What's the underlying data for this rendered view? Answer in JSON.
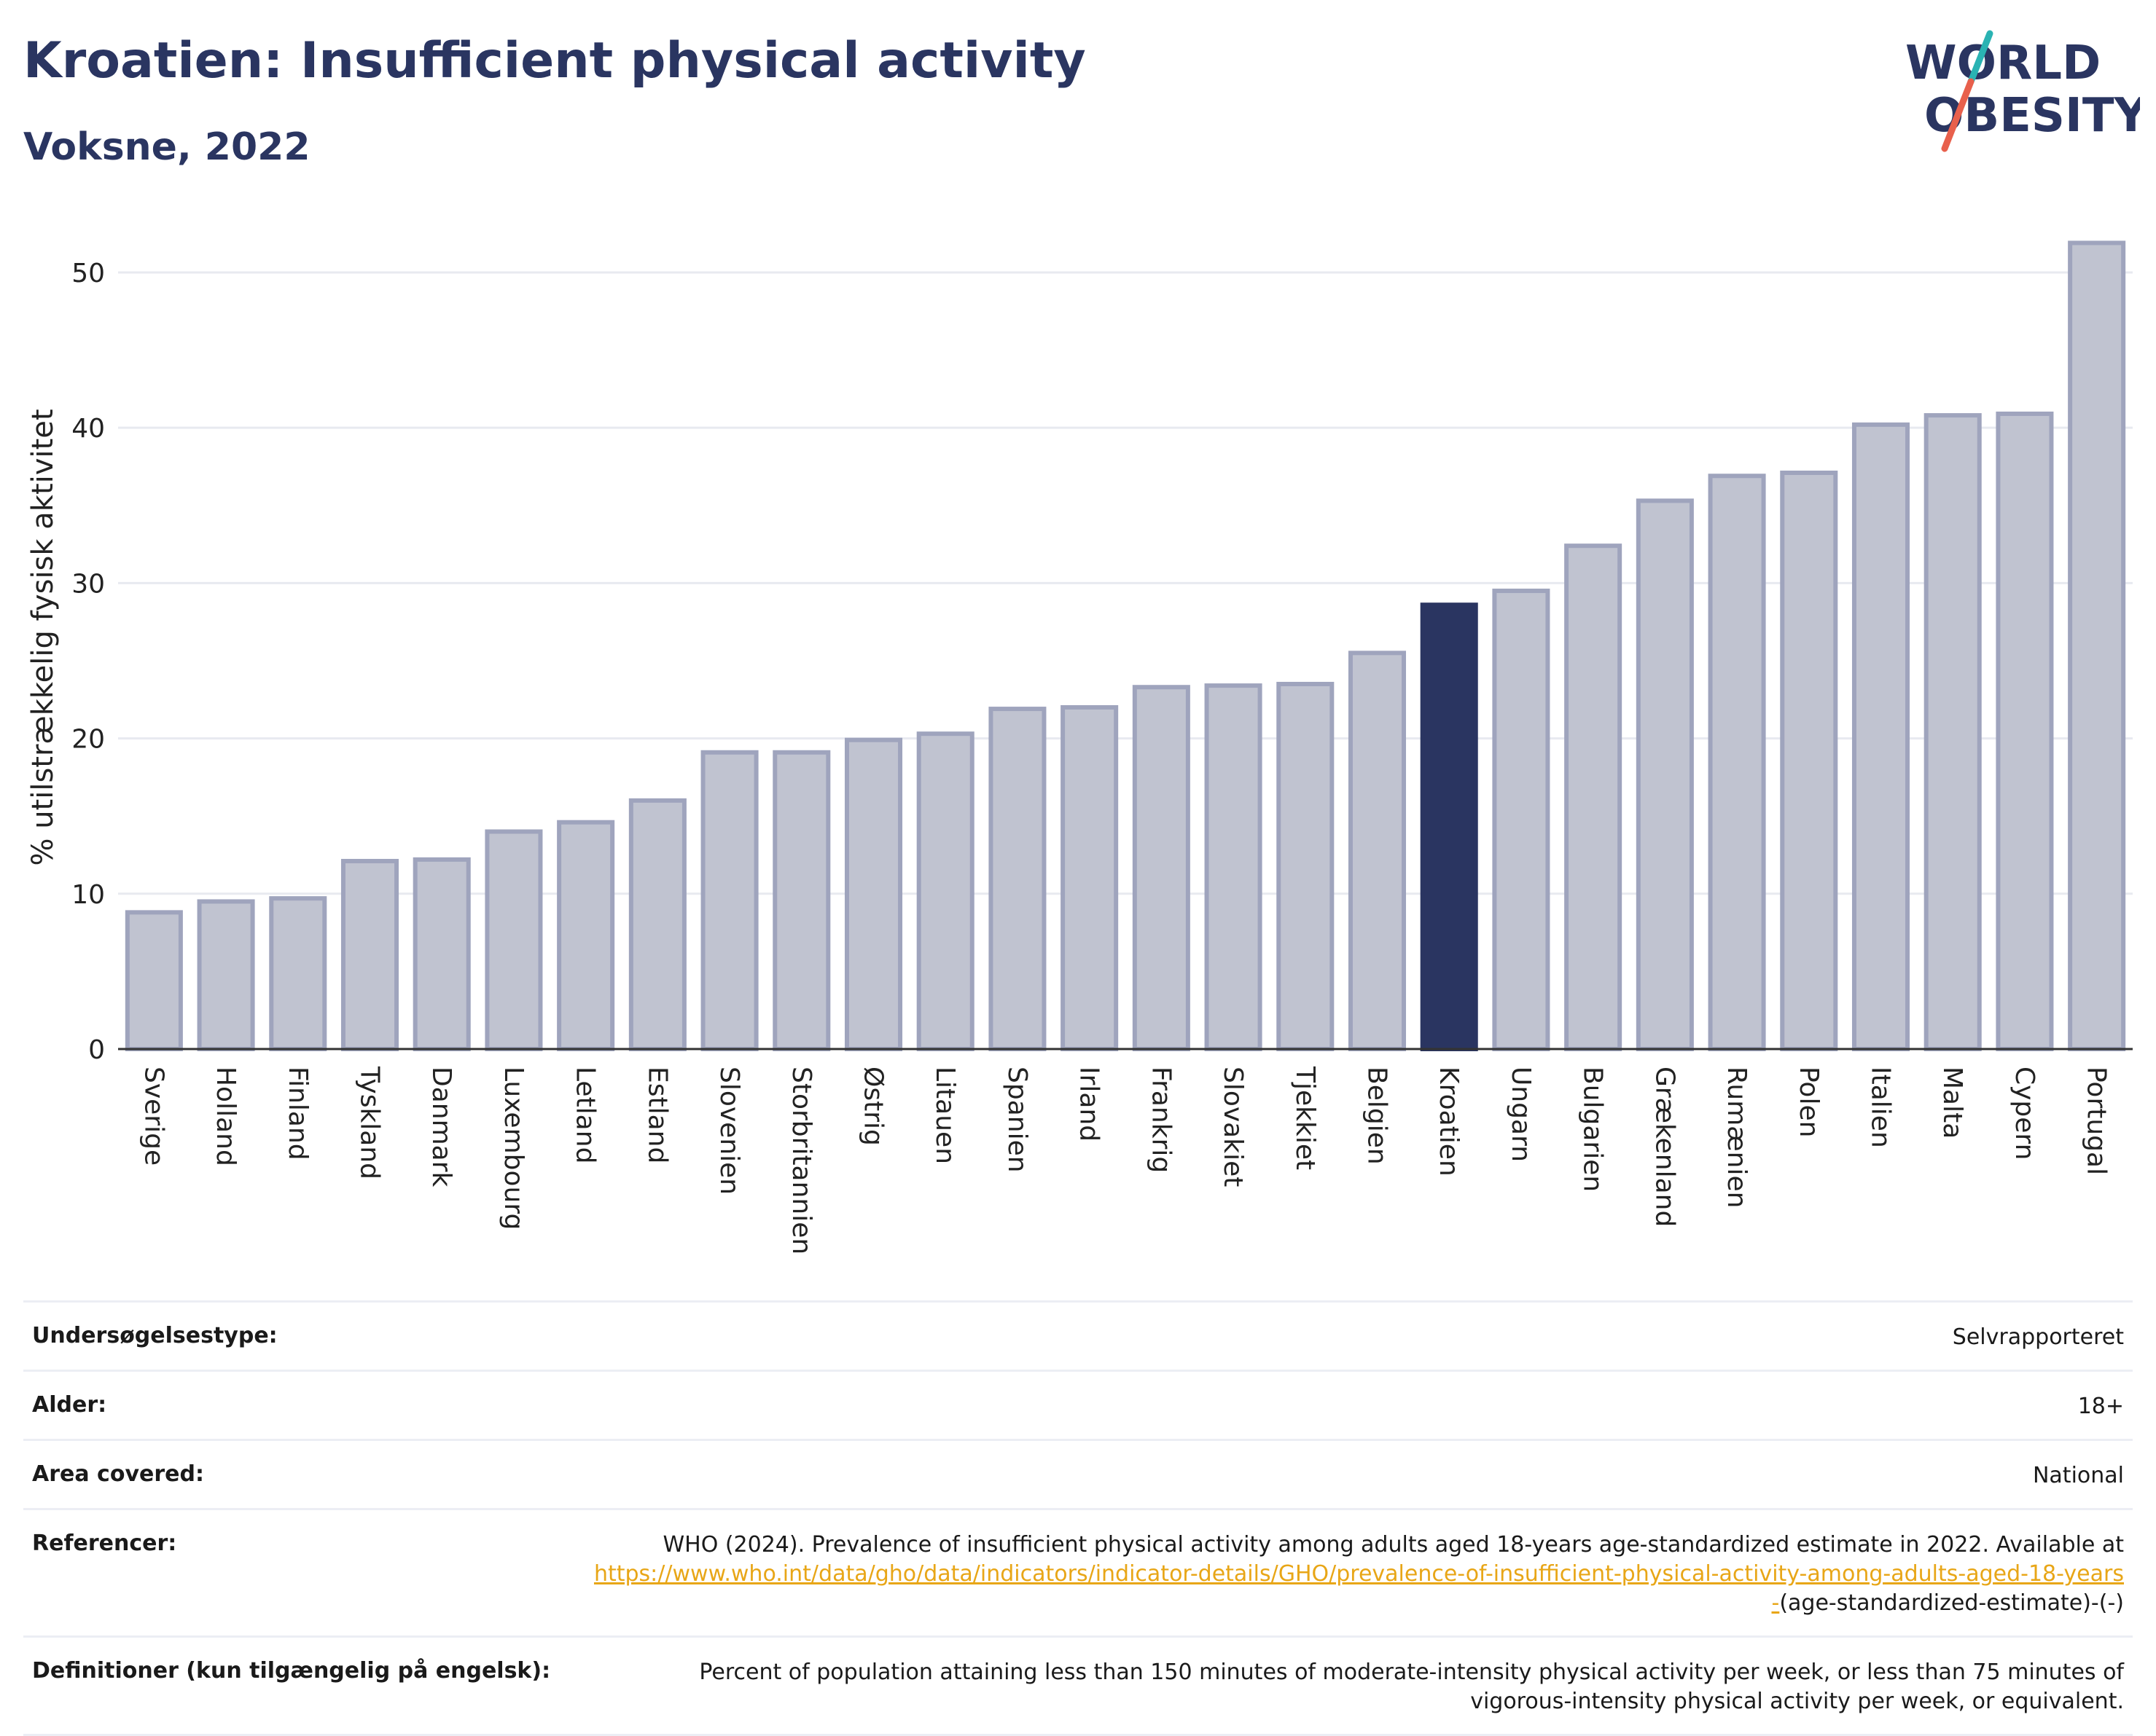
{
  "header": {
    "title": "Kroatien: Insufficient physical activity",
    "subtitle": "Voksne, 2022"
  },
  "logo": {
    "line1": "WORLD",
    "line2": "OBESITY",
    "slash_colors": [
      "#2ab3b3",
      "#e8604c"
    ]
  },
  "colors": {
    "bar": "#c0c3d0",
    "bar_stroke": "#9fa4bd",
    "highlight": "#2a3561",
    "grid": "#e8eaf0",
    "axis": "#333333"
  },
  "chart_data": {
    "type": "bar",
    "title": "Kroatien: Insufficient physical activity",
    "subtitle": "Voksne, 2022",
    "ylabel": "% utilstrækkelig fysisk aktivitet",
    "ylim": [
      0,
      53
    ],
    "yticks": [
      0,
      10,
      20,
      30,
      40,
      50
    ],
    "grid": true,
    "highlight": "Kroatien",
    "categories": [
      "Sverige",
      "Holland",
      "Finland",
      "Tyskland",
      "Danmark",
      "Luxembourg",
      "Letland",
      "Estland",
      "Slovenien",
      "Storbritannien",
      "Østrig",
      "Litauen",
      "Spanien",
      "Irland",
      "Frankrig",
      "Slovakiet",
      "Tjekkiet",
      "Belgien",
      "Kroatien",
      "Ungarn",
      "Bulgarien",
      "Grækenland",
      "Rumænien",
      "Polen",
      "Italien",
      "Malta",
      "Cypern",
      "Portugal"
    ],
    "values": [
      8.8,
      9.5,
      9.7,
      12.1,
      12.2,
      14.0,
      14.6,
      16.0,
      19.1,
      19.1,
      19.9,
      20.3,
      21.9,
      22.0,
      23.3,
      23.4,
      23.5,
      25.5,
      28.6,
      29.5,
      32.4,
      35.3,
      36.9,
      37.1,
      40.2,
      40.8,
      40.9,
      51.9
    ]
  },
  "info": {
    "survey_type": {
      "label": "Undersøgelsestype:",
      "value": "Selvrapporteret"
    },
    "age": {
      "label": "Alder:",
      "value": "18+"
    },
    "area": {
      "label": "Area covered:",
      "value": "National"
    },
    "references": {
      "label": "Referencer:",
      "text": "WHO (2024). Prevalence of insufficient physical activity among adults aged 18-years age-standardized estimate in 2022. Available at",
      "link": "https://www.who.int/data/gho/data/indicators/indicator-details/GHO/prevalence-of-insufficient-physical-activity-among-adults-aged-18-years-",
      "suffix": "(age-standardized-estimate)-(-)"
    },
    "definitions": {
      "label": "Definitioner (kun tilgængelig på engelsk):",
      "value": "Percent of population attaining less than 150 minutes of moderate-intensity physical activity per week, or less than 75 minutes of vigorous-intensity physical activity per week, or equivalent."
    }
  }
}
